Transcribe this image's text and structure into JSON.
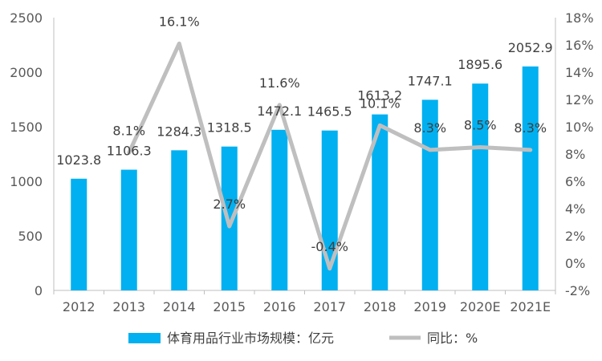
{
  "chart_data": {
    "type": "bar",
    "categories": [
      "2012",
      "2013",
      "2014",
      "2015",
      "2016",
      "2017",
      "2018",
      "2019",
      "2020E",
      "2021E"
    ],
    "series": [
      {
        "name": "体育用品行业市场规模：亿元",
        "type": "bar",
        "axis": "left",
        "color": "#00B0F0",
        "values": [
          1023.8,
          1106.3,
          1284.3,
          1318.5,
          1472.1,
          1465.5,
          1613.2,
          1747.1,
          1895.6,
          2052.9
        ],
        "labels": [
          "1023.8",
          "1106.3",
          "1284.3",
          "1318.5",
          "1472.1",
          "1465.5",
          "1613.2",
          "1747.1",
          "1895.6",
          "2052.9"
        ]
      },
      {
        "name": "同比：%",
        "type": "line",
        "axis": "right",
        "color": "#BFBFBF",
        "values": [
          null,
          8.1,
          16.1,
          2.7,
          11.6,
          -0.4,
          10.1,
          8.3,
          8.5,
          8.3
        ],
        "labels": [
          "",
          "8.1%",
          "16.1%",
          "2.7%",
          "11.6%",
          "-0.4%",
          "10.1%",
          "8.3%",
          "8.5%",
          "8.3%"
        ]
      }
    ],
    "y_left": {
      "min": 0,
      "max": 2500,
      "ticks": [
        0,
        500,
        1000,
        1500,
        2000,
        2500
      ],
      "tick_labels": [
        "0",
        "500",
        "1000",
        "1500",
        "2000",
        "2500"
      ]
    },
    "y_right": {
      "min": -2,
      "max": 18,
      "ticks": [
        -2,
        0,
        2,
        4,
        6,
        8,
        10,
        12,
        14,
        16,
        18
      ],
      "tick_labels": [
        "-2%",
        "0%",
        "2%",
        "4%",
        "6%",
        "8%",
        "10%",
        "12%",
        "14%",
        "16%",
        "18%"
      ]
    },
    "grid": false,
    "legend_position": "bottom"
  }
}
